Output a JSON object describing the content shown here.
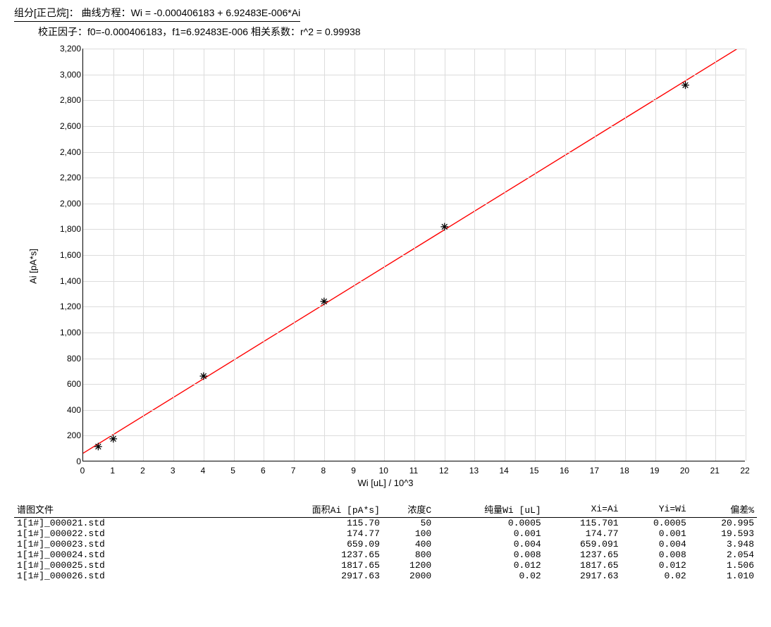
{
  "header": {
    "line1": "组分[正己烷]：  曲线方程：Wi = -0.000406183 + 6.92483E-006*Ai",
    "line2": "校正因子：f0=-0.000406183，f1=6.92483E-006   相关系数：r^2 = 0.99938"
  },
  "chart": {
    "type": "scatter+line",
    "xlabel": "Wi [uL] / 10^3",
    "ylabel": "Ai [pA*s]",
    "xlim": [
      0,
      22
    ],
    "ylim": [
      0,
      3200
    ],
    "xtick_step": 1,
    "ytick_step": 200,
    "ytick_format": "comma",
    "grid_color": "#dcdcdc",
    "axis_color": "#000000",
    "background_color": "#ffffff",
    "line_color": "#ff0000",
    "marker_color": "#000000",
    "marker_symbol": "✳",
    "marker_size": 14,
    "points": [
      {
        "x": 0.5,
        "y": 115.7
      },
      {
        "x": 1.0,
        "y": 174.77
      },
      {
        "x": 4.0,
        "y": 659.09
      },
      {
        "x": 8.0,
        "y": 1237.65
      },
      {
        "x": 12.0,
        "y": 1817.65
      },
      {
        "x": 20.0,
        "y": 2917.63
      }
    ],
    "fit_line": {
      "x1": 0,
      "y1": 58.66,
      "x2": 22,
      "y2": 3235.8
    }
  },
  "table": {
    "columns": [
      "谱图文件",
      "面积Ai [pA*s]",
      "浓度C",
      "纯量Wi [uL]",
      "Xi=Ai",
      "Yi=Wi",
      "偏差%"
    ],
    "align": [
      "left",
      "right",
      "right",
      "right",
      "right",
      "right",
      "right"
    ],
    "rows": [
      [
        "1[1#]_000021.std",
        "115.70",
        "50",
        "0.0005",
        "115.701",
        "0.0005",
        "20.995"
      ],
      [
        "1[1#]_000022.std",
        "174.77",
        "100",
        "0.001",
        "174.77",
        "0.001",
        "19.593"
      ],
      [
        "1[1#]_000023.std",
        "659.09",
        "400",
        "0.004",
        "659.091",
        "0.004",
        "3.948"
      ],
      [
        "1[1#]_000024.std",
        "1237.65",
        "800",
        "0.008",
        "1237.65",
        "0.008",
        "2.054"
      ],
      [
        "1[1#]_000025.std",
        "1817.65",
        "1200",
        "0.012",
        "1817.65",
        "0.012",
        "1.506"
      ],
      [
        "1[1#]_000026.std",
        "2917.63",
        "2000",
        "0.02",
        "2917.63",
        "0.02",
        "1.010"
      ]
    ]
  }
}
